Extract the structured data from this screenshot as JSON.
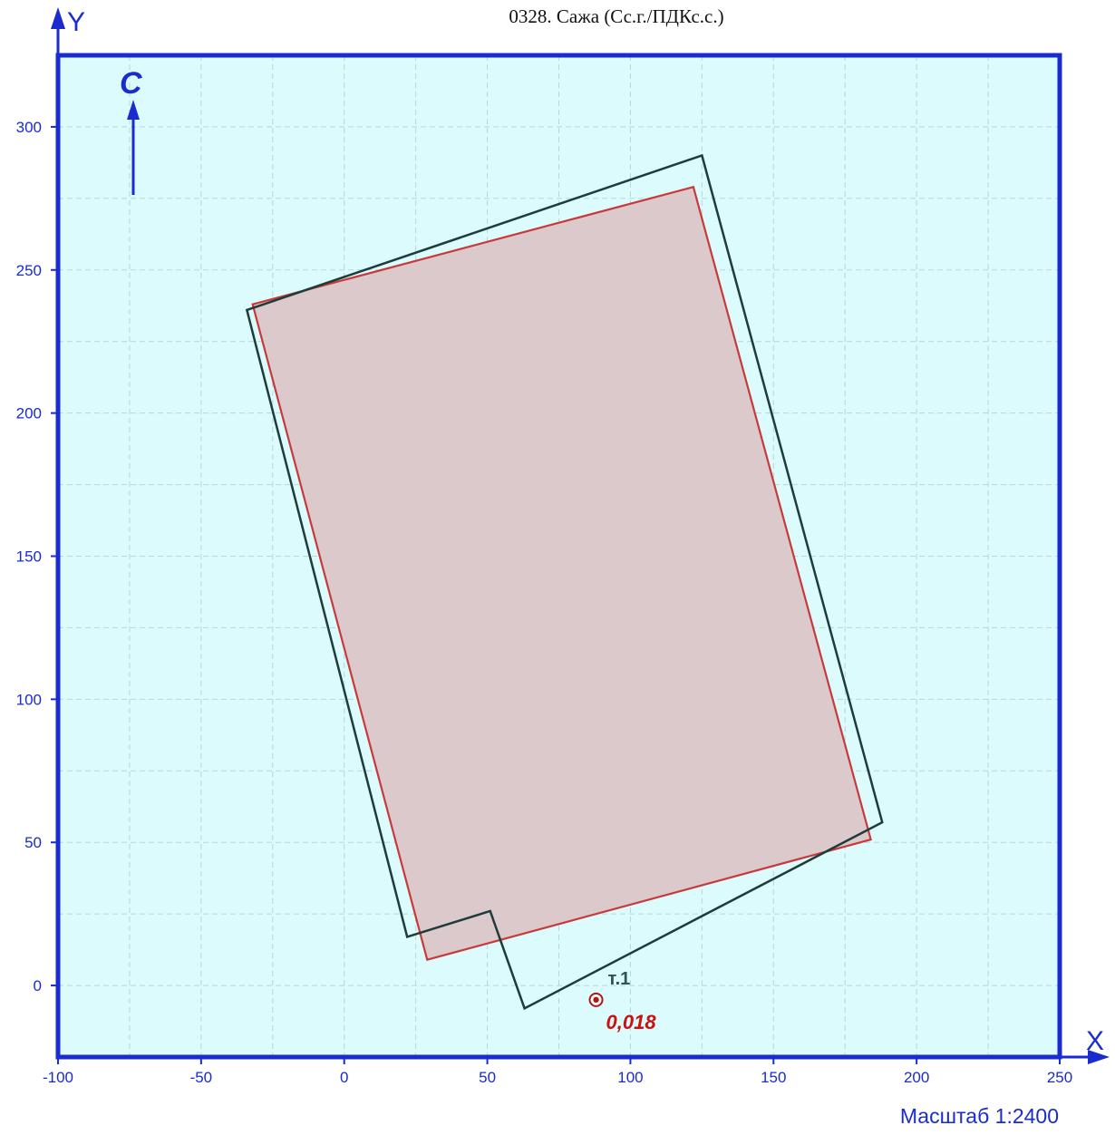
{
  "title": "0328. Сажа (Сс.г./ПДКс.с.)",
  "scale": "Масштаб 1:2400",
  "axes": {
    "x_label": "X",
    "y_label": "Y",
    "x_ticks": [
      -100,
      -50,
      0,
      50,
      100,
      150,
      200,
      250
    ],
    "y_ticks": [
      0,
      50,
      100,
      150,
      200,
      250,
      300
    ],
    "x_range": [
      -100,
      250
    ],
    "y_range": [
      -25,
      325
    ],
    "grid": true
  },
  "north_arrow": {
    "letter": "C"
  },
  "outline_polygon": {
    "color": "#1f3b3a",
    "points": [
      [
        -34,
        236
      ],
      [
        125,
        290
      ],
      [
        188,
        57
      ],
      [
        63,
        -8
      ],
      [
        51,
        26
      ],
      [
        22,
        17
      ]
    ]
  },
  "zone_polygon": {
    "color": "#c83a3a",
    "fill": "#dcc9cc",
    "points": [
      [
        -32,
        238
      ],
      [
        122,
        279
      ],
      [
        184,
        51
      ],
      [
        29,
        9
      ]
    ]
  },
  "points": [
    {
      "label": "т.1",
      "x": 88,
      "y": -5,
      "value": "0,018"
    }
  ],
  "colors": {
    "frame": "#1a2bd0",
    "background": "#dbfbfc"
  }
}
